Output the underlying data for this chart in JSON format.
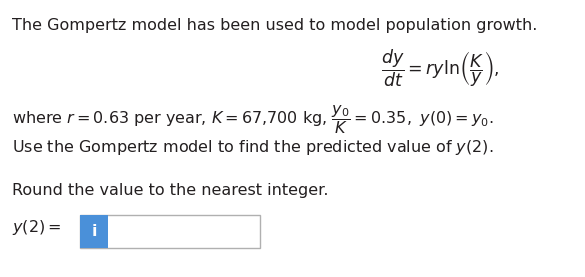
{
  "bg_color": "#ffffff",
  "text_color": "#231f20",
  "line1": "The Gompertz model has been used to model population growth.",
  "eq_dy_dt": "$\\dfrac{dy}{dt} = ry\\ln\\!\\left(\\dfrac{K}{y}\\right),$",
  "line2": "where $r = 0.63$ per year, $K = 67{,}700$ kg, $\\dfrac{y_0}{K} = 0.35,\\ y(0) = y_0.$",
  "line3": "Use the Gompertz model to find the predicted value of $y(2)$.",
  "line4": "Round the value to the nearest integer.",
  "line5": "$y(2) =$",
  "input_box_color": "#4a90d9",
  "input_text": "i",
  "font_size_main": 11.5,
  "font_size_eq": 12.5
}
